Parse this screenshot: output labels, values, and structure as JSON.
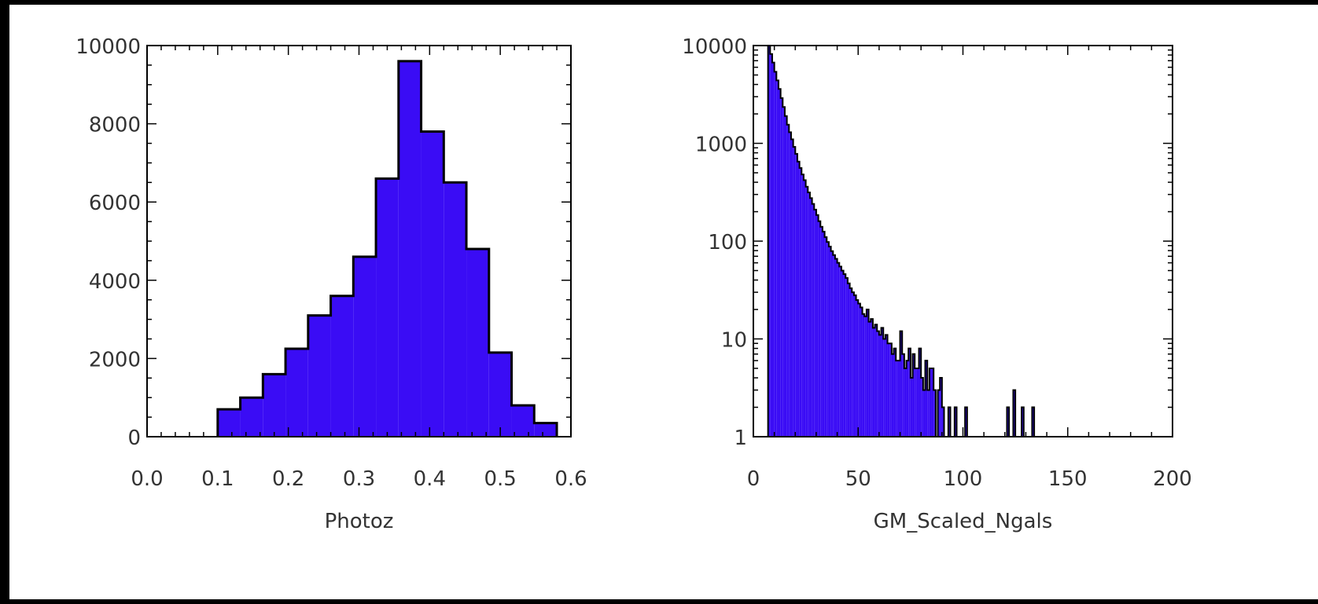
{
  "chart_data": [
    {
      "type": "bar",
      "subtype": "histogram",
      "xlabel": "Photoz",
      "ylabel": "",
      "xlim": [
        0.0,
        0.6
      ],
      "ylim": [
        0,
        10000
      ],
      "y_scale": "linear",
      "xticks": [
        "0.0",
        "0.1",
        "0.2",
        "0.3",
        "0.4",
        "0.5",
        "0.6"
      ],
      "xtick_values": [
        0.0,
        0.1,
        0.2,
        0.3,
        0.4,
        0.5,
        0.6
      ],
      "yticks": [
        "0",
        "2000",
        "4000",
        "6000",
        "8000",
        "10000"
      ],
      "ytick_values": [
        0,
        2000,
        4000,
        6000,
        8000,
        10000
      ],
      "bin_edges": [
        0.1,
        0.132,
        0.164,
        0.196,
        0.228,
        0.26,
        0.292,
        0.324,
        0.356,
        0.388,
        0.42,
        0.452,
        0.484,
        0.516,
        0.548
      ],
      "values": [
        700,
        1000,
        1600,
        2250,
        3100,
        3600,
        4600,
        6600,
        9600,
        7800,
        6500,
        4800,
        2150,
        800,
        350
      ],
      "fill_color": "#3a0cf5"
    },
    {
      "type": "bar",
      "subtype": "histogram",
      "xlabel": "GM_Scaled_Ngals",
      "ylabel": "",
      "xlim": [
        0,
        200
      ],
      "ylim": [
        1,
        10000
      ],
      "y_scale": "log",
      "xticks": [
        "0",
        "50",
        "100",
        "150",
        "200"
      ],
      "xtick_values": [
        0,
        50,
        100,
        150,
        200
      ],
      "yticks": [
        "1",
        "10",
        "100",
        "1000",
        "10000"
      ],
      "ytick_values": [
        1,
        10,
        100,
        1000,
        10000
      ],
      "x_start": 7,
      "bin_width": 1,
      "values": [
        10000,
        8200,
        6700,
        5400,
        4400,
        3600,
        2900,
        2350,
        1900,
        1550,
        1300,
        1100,
        920,
        780,
        650,
        560,
        480,
        420,
        360,
        315,
        275,
        240,
        210,
        185,
        160,
        140,
        125,
        110,
        98,
        88,
        79,
        72,
        66,
        60,
        55,
        50,
        46,
        42,
        37,
        33,
        30,
        28,
        25,
        23,
        21,
        18,
        17,
        20,
        15,
        16,
        13,
        14,
        12,
        11,
        13,
        10,
        11,
        9,
        9,
        7,
        8,
        6,
        6,
        12,
        7,
        5,
        6,
        8,
        4,
        7,
        5,
        5,
        8,
        4,
        3,
        6,
        3,
        5,
        5,
        3,
        1,
        3,
        4,
        2,
        1,
        1,
        2,
        1,
        1,
        2,
        1,
        1,
        1,
        1,
        2,
        0,
        0,
        0,
        0,
        0,
        0,
        0,
        0,
        0,
        0,
        0,
        0,
        0,
        0,
        0,
        0,
        0,
        0,
        0,
        2,
        1,
        0,
        3,
        1,
        0,
        0,
        2,
        0,
        0,
        0,
        0,
        2,
        0
      ],
      "fill_color": "#3a0cf5"
    }
  ]
}
